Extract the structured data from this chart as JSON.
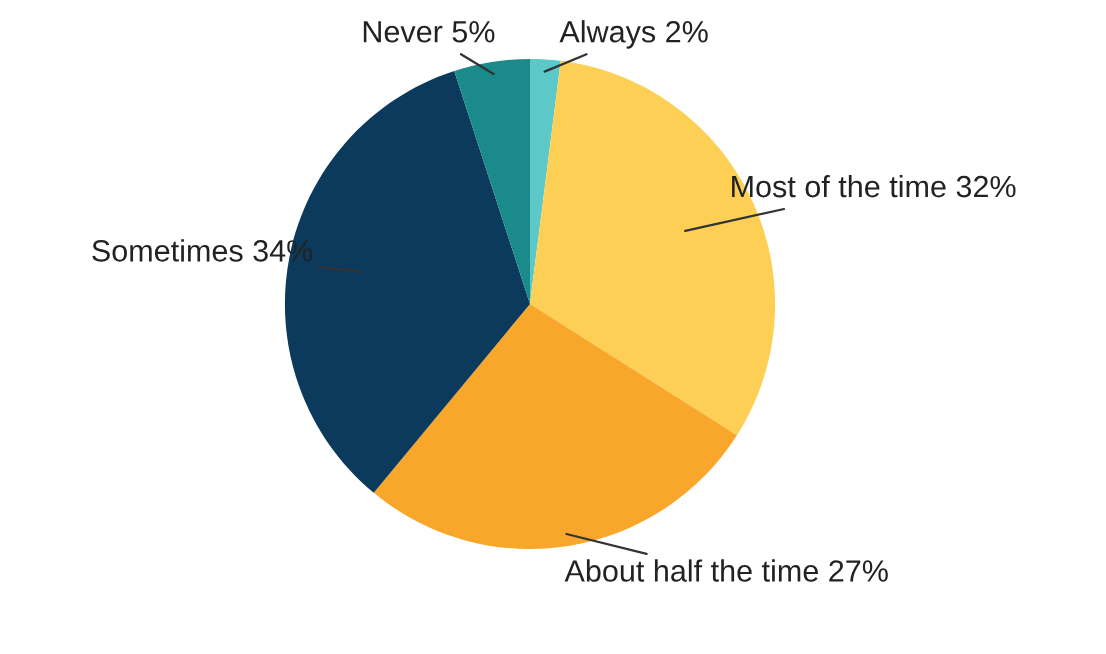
{
  "chart_data": {
    "type": "pie",
    "categories": [
      "Always",
      "Most of the time",
      "About half the time",
      "Sometimes",
      "Never"
    ],
    "values": [
      2,
      32,
      27,
      34,
      5
    ],
    "colors": [
      "#5cc8c8",
      "#fdd055",
      "#f9a72a",
      "#0b3a5c",
      "#1b8a8a"
    ],
    "value_labels": [
      "2%",
      "32%",
      "27%",
      "34%",
      "5%"
    ],
    "legend": false
  }
}
